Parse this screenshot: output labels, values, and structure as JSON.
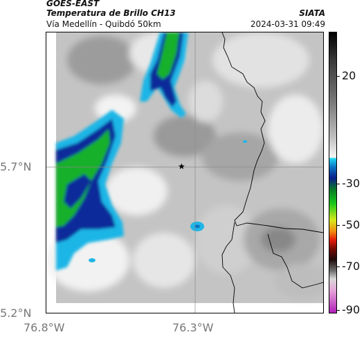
{
  "header": {
    "satellite": "GOES-EAST",
    "product": "Temperatura de Brillo CH13",
    "location": "Vía Medellín - Quibdó 50km",
    "agency": "SIATA",
    "datetime": "2024-03-31 09:49"
  },
  "axes": {
    "lat_ticks": [
      "5.7°N",
      "5.2°N"
    ],
    "lon_ticks": [
      "76.8°W",
      "76.3°W"
    ]
  },
  "colorbar": {
    "tick_labels": [
      "20",
      "-30",
      "-50",
      "-70",
      "-90"
    ]
  },
  "map": {
    "marker": "★",
    "marker_icon": "star-icon"
  },
  "colors": {
    "cloud_cyan": "#1fb6e6",
    "cloud_blue": "#0a2a9a",
    "cloud_green": "#17b02a",
    "border_line": "#000000"
  }
}
